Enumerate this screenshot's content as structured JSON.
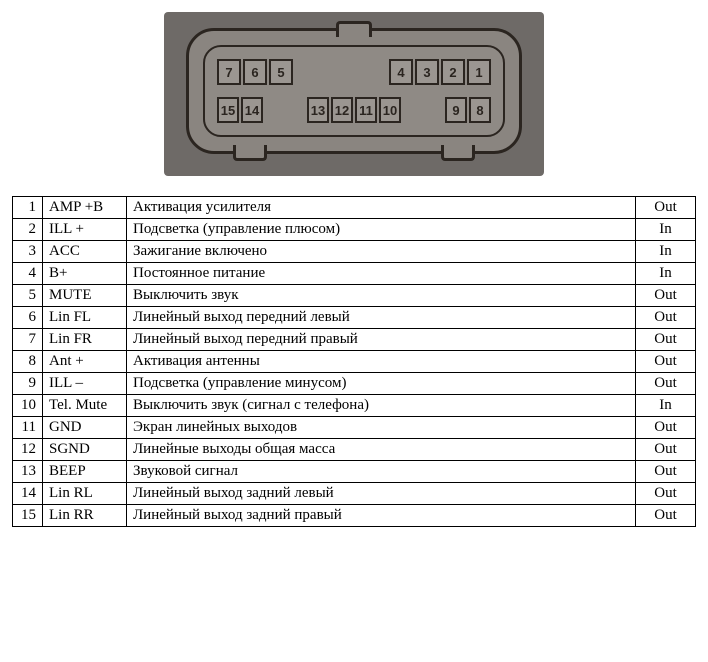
{
  "connector": {
    "background_photo": "#6e6a67",
    "connector_fill": "#8a8580",
    "line_color": "#2b2520",
    "top_row_groups": [
      [
        "7",
        "6",
        "5"
      ],
      [
        "4",
        "3",
        "2",
        "1"
      ]
    ],
    "bottom_row_groups": [
      [
        "15",
        "14"
      ],
      [
        "13",
        "12",
        "11",
        "10"
      ],
      [
        "9",
        "8"
      ]
    ]
  },
  "table": {
    "rows": [
      {
        "n": "1",
        "sig": "AMP +B",
        "desc": "Активация усилителя",
        "dir": "Out"
      },
      {
        "n": "2",
        "sig": "ILL +",
        "desc": "Подсветка (управление плюсом)",
        "dir": "In"
      },
      {
        "n": "3",
        "sig": "ACC",
        "desc": "Зажигание включено",
        "dir": "In"
      },
      {
        "n": "4",
        "sig": "B+",
        "desc": "Постоянное питание",
        "dir": "In"
      },
      {
        "n": "5",
        "sig": "MUTE",
        "desc": "Выключить звук",
        "dir": "Out"
      },
      {
        "n": "6",
        "sig": "Lin FL",
        "desc": "Линейный выход передний левый",
        "dir": "Out"
      },
      {
        "n": "7",
        "sig": "Lin FR",
        "desc": "Линейный выход передний правый",
        "dir": "Out"
      },
      {
        "n": "8",
        "sig": "Ant +",
        "desc": "Активация антенны",
        "dir": "Out"
      },
      {
        "n": "9",
        "sig": "ILL –",
        "desc": "Подсветка (управление минусом)",
        "dir": "Out"
      },
      {
        "n": "10",
        "sig": "Tel. Mute",
        "desc": "Выключить звук (сигнал с телефона)",
        "dir": "In"
      },
      {
        "n": "11",
        "sig": "GND",
        "desc": "Экран линейных выходов",
        "dir": "Out"
      },
      {
        "n": "12",
        "sig": "SGND",
        "desc": "Линейные выходы общая масса",
        "dir": "Out"
      },
      {
        "n": "13",
        "sig": "BEEP",
        "desc": "Звуковой сигнал",
        "dir": "Out"
      },
      {
        "n": "14",
        "sig": "Lin RL",
        "desc": "Линейный выход задний левый",
        "dir": "Out"
      },
      {
        "n": "15",
        "sig": "Lin RR",
        "desc": "Линейный выход задний правый",
        "dir": "Out"
      }
    ]
  }
}
